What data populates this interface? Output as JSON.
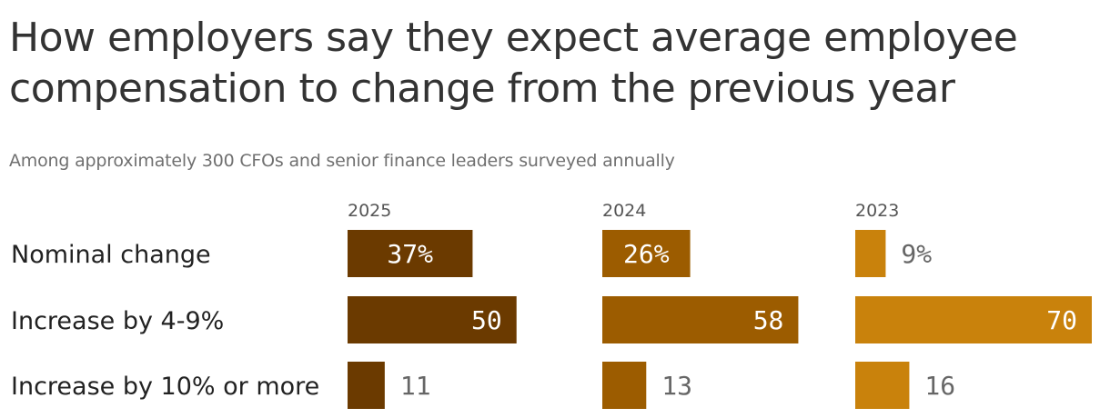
{
  "title": "How employers say they expect average employee compensation to change from the previous year",
  "subtitle": "Among approximately 300 CFOs and senior finance leaders surveyed annually",
  "chart_data": {
    "type": "bar",
    "orientation": "horizontal",
    "layout": "small-multiples",
    "categories": [
      "Nominal change",
      "Increase by 4-9%",
      "Increase by 10% or more"
    ],
    "panels": [
      {
        "name": "2025",
        "values": [
          37,
          50,
          11
        ],
        "labels": [
          "37%",
          "50",
          "11"
        ],
        "color": "#6b3a00"
      },
      {
        "name": "2024",
        "values": [
          26,
          58,
          13
        ],
        "labels": [
          "26%",
          "58",
          "13"
        ],
        "color": "#9c5c00"
      },
      {
        "name": "2023",
        "values": [
          9,
          70,
          16
        ],
        "labels": [
          "9%",
          "70",
          "16"
        ],
        "color": "#c9820c"
      }
    ],
    "xlim": [
      0,
      70
    ],
    "grid": false,
    "legend": "none"
  }
}
